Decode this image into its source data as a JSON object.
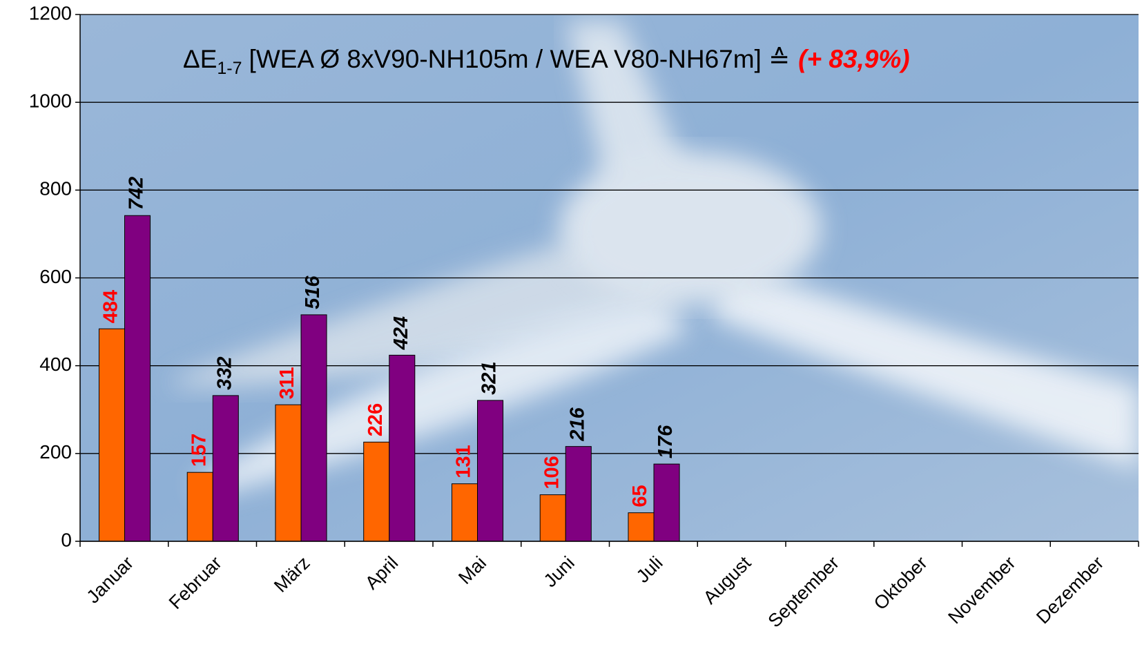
{
  "chart_data": {
    "type": "bar",
    "title": "ΔE",
    "title_subscript": "1-7",
    "title_rest": "[WEA Ø 8xV90-NH105m  / WEA V80-NH67m] ≙",
    "title_emphasis": "(+ 83,9%)",
    "categories": [
      "Januar",
      "Februar",
      "März",
      "April",
      "Mai",
      "Juni",
      "Juli",
      "August",
      "September",
      "Oktober",
      "November",
      "Dezember"
    ],
    "series": [
      {
        "color": "#ff6600",
        "label_color": "#ff0000",
        "values": [
          484,
          157,
          311,
          226,
          131,
          106,
          65,
          null,
          null,
          null,
          null,
          null
        ]
      },
      {
        "color": "#800080",
        "label_color": "#000000",
        "values": [
          742,
          332,
          516,
          424,
          321,
          216,
          176,
          null,
          null,
          null,
          null,
          null
        ]
      }
    ],
    "ylim": [
      0,
      1200
    ],
    "yticks": [
      0,
      200,
      400,
      600,
      800,
      1000,
      1200
    ],
    "grid": true
  }
}
